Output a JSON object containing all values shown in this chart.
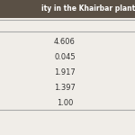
{
  "title": "ity in the Khairbar planta",
  "values": [
    "4.606",
    "0.045",
    "1.917",
    "1.397",
    "1.00"
  ],
  "bg_color": "#f0ede8",
  "title_bg_color": "#5a5045",
  "title_text_color": "#ffffff",
  "text_color": "#333333",
  "title_fontsize": 5.5,
  "value_fontsize": 6.0,
  "line_color": "#aaaaaa"
}
